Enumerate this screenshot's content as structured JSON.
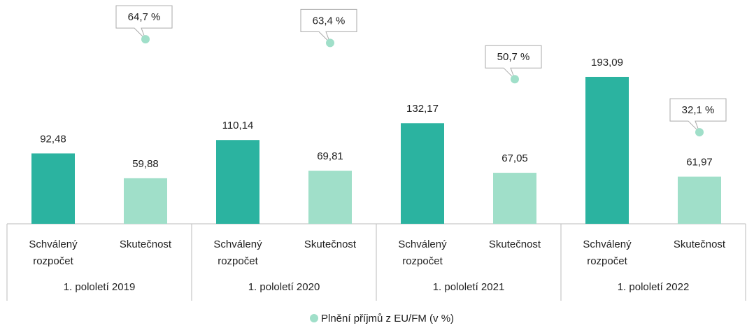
{
  "chart_data": {
    "type": "bar",
    "categories": [
      "1. pololetí 2019",
      "1. pololetí 2020",
      "1. pololetí 2021",
      "1. pololetí 2022"
    ],
    "subcategories": [
      "Schválený rozpočet",
      "Skutečnost"
    ],
    "ylim": [
      0,
      285
    ],
    "y2lim": [
      0,
      76
    ],
    "series": [
      {
        "color": "#2bb3a0",
        "values": [
          92.48,
          110.14,
          132.17,
          193.09
        ],
        "value_labels": [
          "92,48",
          "110,14",
          "132,17",
          "193,09"
        ]
      },
      {
        "color": "#a0dfc9",
        "values": [
          59.88,
          69.81,
          67.05,
          61.97
        ],
        "value_labels": [
          "59,88",
          "69,81",
          "67,05",
          "61,97"
        ]
      },
      {
        "type": "scatter",
        "name": "Plnění příjmů z EU/FM (v %)",
        "axis": "y2",
        "color": "#a0dfc9",
        "values": [
          64.7,
          63.4,
          50.7,
          32.1
        ],
        "value_labels": [
          "64,7 %",
          "63,4 %",
          "50,7 %",
          "32,1 %"
        ]
      }
    ],
    "legend": "bottom"
  }
}
